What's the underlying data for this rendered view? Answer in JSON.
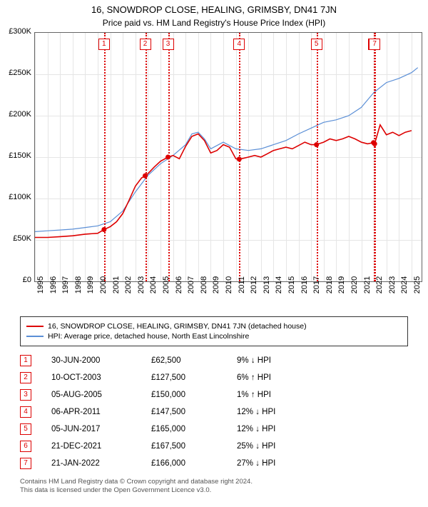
{
  "title": "16, SNOWDROP CLOSE, HEALING, GRIMSBY, DN41 7JN",
  "subtitle": "Price paid vs. HM Land Registry's House Price Index (HPI)",
  "chart": {
    "type": "line",
    "background_color": "#ffffff",
    "grid_color": "#e5e5e5",
    "axis_color": "#666666",
    "x_years": [
      1995,
      1996,
      1997,
      1998,
      1999,
      2000,
      2001,
      2002,
      2003,
      2004,
      2005,
      2006,
      2007,
      2008,
      2009,
      2010,
      2011,
      2012,
      2013,
      2014,
      2015,
      2016,
      2017,
      2018,
      2019,
      2020,
      2021,
      2022,
      2023,
      2024,
      2025
    ],
    "xlim": [
      1995,
      2025.8
    ],
    "ylim": [
      0,
      300000
    ],
    "ytick_step": 50000,
    "ytick_labels": [
      "£0",
      "£50K",
      "£100K",
      "£150K",
      "£200K",
      "£250K",
      "£300K"
    ],
    "tick_fontsize": 11,
    "series": {
      "paid": {
        "label": "16, SNOWDROP CLOSE, HEALING, GRIMSBY, DN41 7JN (detached house)",
        "color": "#dd0000",
        "line_width": 1.6,
        "points": [
          [
            1995.0,
            53000
          ],
          [
            1996.0,
            53000
          ],
          [
            1997.0,
            54000
          ],
          [
            1998.0,
            55000
          ],
          [
            1999.0,
            57000
          ],
          [
            2000.0,
            58000
          ],
          [
            2000.5,
            62500
          ],
          [
            2001.0,
            66000
          ],
          [
            2001.5,
            72000
          ],
          [
            2002.0,
            82000
          ],
          [
            2002.5,
            98000
          ],
          [
            2003.0,
            115000
          ],
          [
            2003.5,
            125000
          ],
          [
            2003.8,
            127500
          ],
          [
            2004.0,
            130000
          ],
          [
            2004.5,
            138000
          ],
          [
            2005.0,
            145000
          ],
          [
            2005.6,
            150000
          ],
          [
            2006.0,
            152000
          ],
          [
            2006.5,
            148000
          ],
          [
            2007.0,
            163000
          ],
          [
            2007.5,
            175000
          ],
          [
            2008.0,
            178000
          ],
          [
            2008.5,
            170000
          ],
          [
            2009.0,
            155000
          ],
          [
            2009.5,
            158000
          ],
          [
            2010.0,
            165000
          ],
          [
            2010.5,
            162000
          ],
          [
            2011.0,
            148000
          ],
          [
            2011.3,
            147500
          ],
          [
            2012.0,
            150000
          ],
          [
            2012.5,
            152000
          ],
          [
            2013.0,
            150000
          ],
          [
            2013.5,
            154000
          ],
          [
            2014.0,
            158000
          ],
          [
            2014.5,
            160000
          ],
          [
            2015.0,
            162000
          ],
          [
            2015.5,
            160000
          ],
          [
            2016.0,
            164000
          ],
          [
            2016.5,
            168000
          ],
          [
            2017.0,
            165000
          ],
          [
            2017.4,
            165000
          ],
          [
            2018.0,
            168000
          ],
          [
            2018.5,
            172000
          ],
          [
            2019.0,
            170000
          ],
          [
            2019.5,
            172000
          ],
          [
            2020.0,
            175000
          ],
          [
            2020.5,
            172000
          ],
          [
            2021.0,
            168000
          ],
          [
            2021.5,
            166000
          ],
          [
            2021.97,
            167500
          ],
          [
            2022.06,
            166000
          ],
          [
            2022.5,
            189000
          ],
          [
            2023.0,
            177000
          ],
          [
            2023.5,
            180000
          ],
          [
            2024.0,
            176000
          ],
          [
            2024.5,
            180000
          ],
          [
            2025.0,
            182000
          ]
        ]
      },
      "hpi": {
        "label": "HPI: Average price, detached house, North East Lincolnshire",
        "color": "#5b8fd6",
        "line_width": 1.2,
        "points": [
          [
            1995.0,
            60000
          ],
          [
            1996.0,
            61000
          ],
          [
            1997.0,
            62000
          ],
          [
            1998.0,
            63000
          ],
          [
            1999.0,
            65000
          ],
          [
            2000.0,
            67000
          ],
          [
            2001.0,
            72000
          ],
          [
            2002.0,
            85000
          ],
          [
            2003.0,
            108000
          ],
          [
            2004.0,
            128000
          ],
          [
            2005.0,
            142000
          ],
          [
            2006.0,
            152000
          ],
          [
            2007.0,
            165000
          ],
          [
            2007.5,
            178000
          ],
          [
            2008.0,
            180000
          ],
          [
            2008.5,
            172000
          ],
          [
            2009.0,
            160000
          ],
          [
            2010.0,
            168000
          ],
          [
            2011.0,
            160000
          ],
          [
            2012.0,
            158000
          ],
          [
            2013.0,
            160000
          ],
          [
            2014.0,
            165000
          ],
          [
            2015.0,
            170000
          ],
          [
            2016.0,
            178000
          ],
          [
            2017.0,
            185000
          ],
          [
            2018.0,
            192000
          ],
          [
            2019.0,
            195000
          ],
          [
            2020.0,
            200000
          ],
          [
            2021.0,
            210000
          ],
          [
            2022.0,
            228000
          ],
          [
            2023.0,
            240000
          ],
          [
            2024.0,
            245000
          ],
          [
            2025.0,
            252000
          ],
          [
            2025.5,
            258000
          ]
        ]
      }
    },
    "markers": [
      {
        "n": 1,
        "year": 2000.5,
        "price": 62500
      },
      {
        "n": 2,
        "year": 2003.78,
        "price": 127500
      },
      {
        "n": 3,
        "year": 2005.6,
        "price": 150000
      },
      {
        "n": 4,
        "year": 2011.27,
        "price": 147500
      },
      {
        "n": 5,
        "year": 2017.43,
        "price": 165000
      },
      {
        "n": 6,
        "year": 2021.97,
        "price": 167500
      },
      {
        "n": 7,
        "year": 2022.06,
        "price": 166000
      }
    ],
    "marker_color": "#dd0000",
    "marker_box_size": 16,
    "dot_radius": 3.5
  },
  "legend": {
    "border_color": "#333333",
    "fontsize": 10.5,
    "items": [
      {
        "color": "#dd0000",
        "label_ref": "chart.series.paid.label"
      },
      {
        "color": "#5b8fd6",
        "label_ref": "chart.series.hpi.label"
      }
    ]
  },
  "transactions": [
    {
      "n": 1,
      "date": "30-JUN-2000",
      "price": "£62,500",
      "diff": "9% ↓ HPI"
    },
    {
      "n": 2,
      "date": "10-OCT-2003",
      "price": "£127,500",
      "diff": "6% ↑ HPI"
    },
    {
      "n": 3,
      "date": "05-AUG-2005",
      "price": "£150,000",
      "diff": "1% ↑ HPI"
    },
    {
      "n": 4,
      "date": "06-APR-2011",
      "price": "£147,500",
      "diff": "12% ↓ HPI"
    },
    {
      "n": 5,
      "date": "05-JUN-2017",
      "price": "£165,000",
      "diff": "12% ↓ HPI"
    },
    {
      "n": 6,
      "date": "21-DEC-2021",
      "price": "£167,500",
      "diff": "25% ↓ HPI"
    },
    {
      "n": 7,
      "date": "21-JAN-2022",
      "price": "£166,000",
      "diff": "27% ↓ HPI"
    }
  ],
  "tx_fontsize": 11.5,
  "footer_line1": "Contains HM Land Registry data © Crown copyright and database right 2024.",
  "footer_line2": "This data is licensed under the Open Government Licence v3.0.",
  "footer_color": "#555555"
}
